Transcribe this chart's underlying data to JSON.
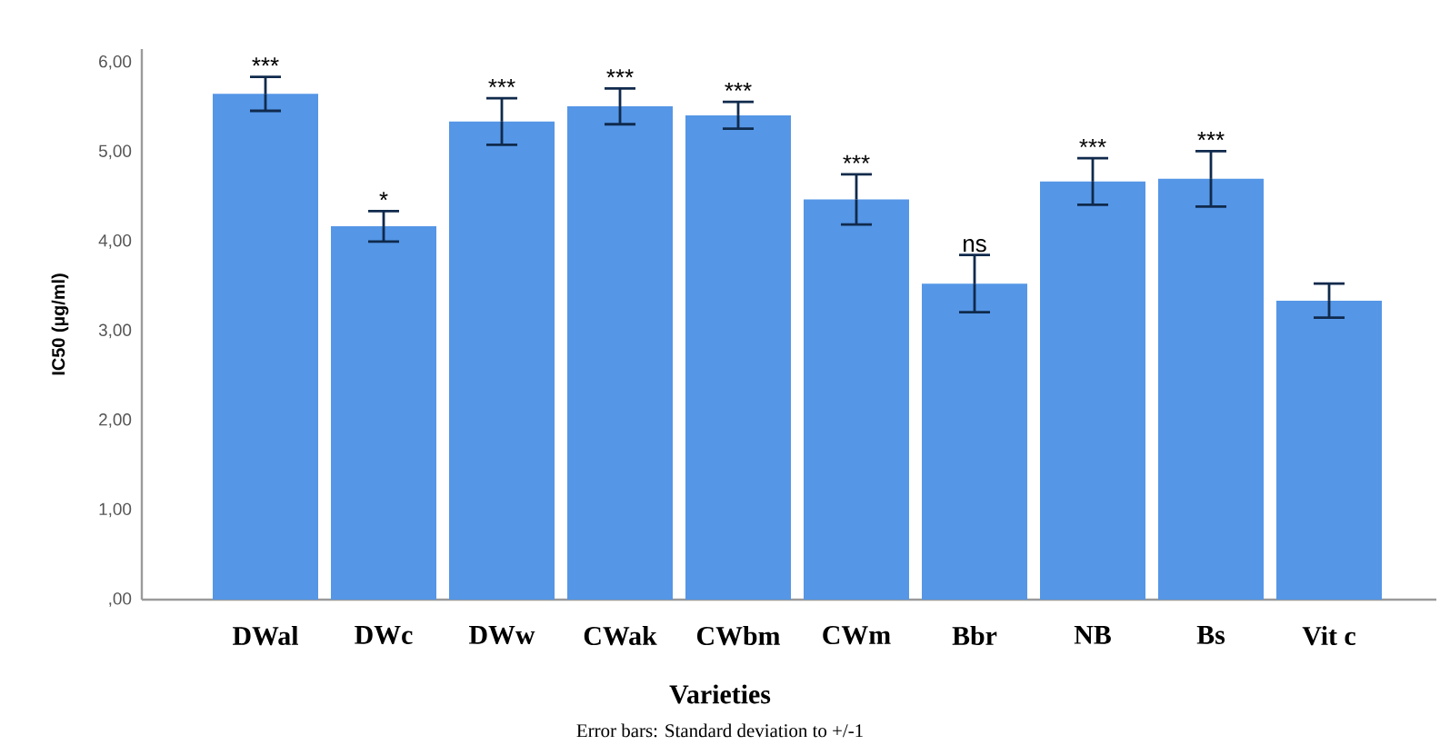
{
  "chart_data": {
    "type": "bar",
    "xlabel": "Varieties",
    "ylabel": "IC50 (µg/ml)",
    "categories": [
      "DWal",
      "DWc",
      "DWw",
      "CWak",
      "CWbm",
      "CWm",
      "Bbr",
      "NB",
      "Bs",
      "Vit c"
    ],
    "values": [
      5.65,
      4.17,
      5.34,
      5.51,
      5.41,
      4.47,
      3.53,
      4.67,
      4.7,
      3.34
    ],
    "errors": [
      0.19,
      0.17,
      0.26,
      0.2,
      0.15,
      0.28,
      0.32,
      0.26,
      0.31,
      0.19
    ],
    "color": "#5596e6",
    "ylim": [
      0,
      6.15
    ],
    "yticks": [
      {
        "value": 0,
        "label": ",00"
      },
      {
        "value": 1,
        "label": "1,00"
      },
      {
        "value": 2,
        "label": "2,00"
      },
      {
        "value": 3,
        "label": "3,00"
      },
      {
        "value": 4,
        "label": "4,00"
      },
      {
        "value": 5,
        "label": "5,00"
      },
      {
        "value": 6,
        "label": "6,00"
      }
    ],
    "grid": false,
    "annotations": [
      {
        "text": "***",
        "x": "DWal",
        "y": 5.84
      },
      {
        "text": "*",
        "x": "DWc",
        "y": 4.34
      },
      {
        "text": "***",
        "x": "DWw",
        "y": 5.6
      },
      {
        "text": "***",
        "x": "CWak",
        "y": 5.71
      },
      {
        "text": "***",
        "x": "CWbm",
        "y": 5.56
      },
      {
        "text": "***",
        "x": "CWm",
        "y": 4.75
      },
      {
        "text": "ns",
        "x": "Bbr",
        "y": 3.85
      },
      {
        "text": "***",
        "x": "NB",
        "y": 4.93
      },
      {
        "text": "***",
        "x": "Bs",
        "y": 5.01
      },
      "Error bars: Standard deviation to +/-1"
    ]
  }
}
